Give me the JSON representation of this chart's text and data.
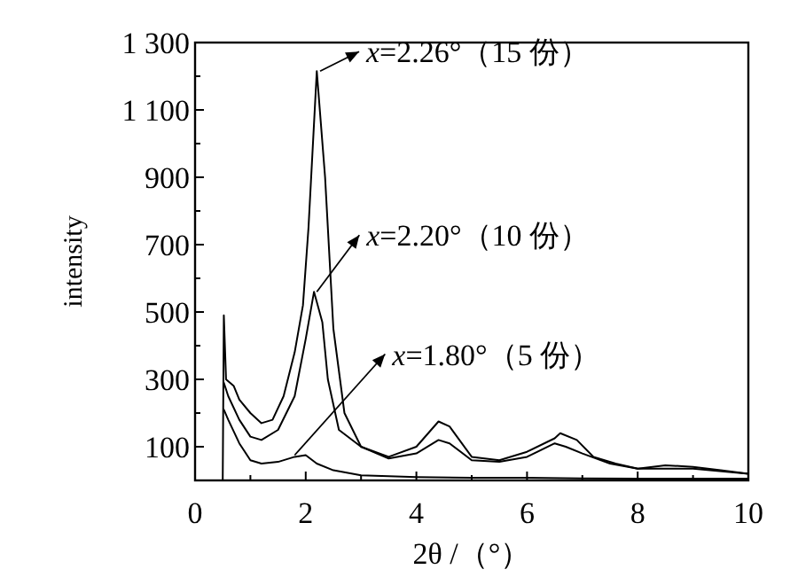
{
  "chart_data": {
    "type": "line",
    "xlabel": "2θ /（°）",
    "ylabel": "intensity",
    "xlim": [
      0,
      10
    ],
    "ylim": [
      0,
      1300
    ],
    "xticks": [
      0,
      {
        "value": 1,
        "label": null
      },
      2,
      {
        "value": 3,
        "label": null
      },
      4,
      {
        "value": 5,
        "label": null
      },
      6,
      {
        "value": 7,
        "label": null
      },
      8,
      {
        "value": 9,
        "label": null
      },
      10
    ],
    "yticks": [
      {
        "value": 100,
        "label": "100"
      },
      {
        "value": 200,
        "label": null
      },
      {
        "value": 300,
        "label": "300"
      },
      {
        "value": 400,
        "label": null
      },
      {
        "value": 500,
        "label": "500"
      },
      {
        "value": 600,
        "label": null
      },
      {
        "value": 700,
        "label": "700"
      },
      {
        "value": 800,
        "label": null
      },
      {
        "value": 900,
        "label": "900"
      },
      {
        "value": 1000,
        "label": null
      },
      {
        "value": 1100,
        "label": "1 100"
      },
      {
        "value": 1200,
        "label": null
      },
      {
        "value": 1300,
        "label": "1 300"
      }
    ],
    "grid": false,
    "marker": "none",
    "line_style": "solid",
    "series": [
      {
        "color": "#000000",
        "x": [
          0.5,
          0.52,
          0.56,
          0.7,
          0.8,
          1.0,
          1.2,
          1.4,
          1.6,
          1.8,
          1.95,
          2.05,
          2.2,
          2.35,
          2.5,
          2.7,
          3.0,
          3.5,
          4.0,
          4.4,
          4.6,
          5.0,
          5.5,
          6.0,
          6.5,
          6.6,
          6.9,
          7.2,
          7.6,
          8.0,
          8.5,
          9.0,
          9.5,
          10.0
        ],
        "values": [
          0,
          490,
          300,
          280,
          240,
          200,
          170,
          180,
          250,
          380,
          520,
          750,
          1215,
          900,
          450,
          200,
          100,
          70,
          100,
          175,
          160,
          70,
          60,
          85,
          125,
          140,
          120,
          70,
          50,
          35,
          45,
          40,
          30,
          20
        ]
      },
      {
        "color": "#000000",
        "x": [
          0.52,
          0.6,
          0.8,
          1.0,
          1.2,
          1.5,
          1.8,
          2.0,
          2.15,
          2.3,
          2.4,
          2.6,
          3.0,
          3.5,
          4.0,
          4.4,
          4.6,
          5.0,
          5.5,
          6.0,
          6.5,
          6.7,
          7.0,
          7.5,
          8.0,
          9.0,
          10.0
        ],
        "values": [
          290,
          250,
          180,
          130,
          120,
          150,
          250,
          420,
          560,
          470,
          300,
          150,
          100,
          65,
          80,
          120,
          110,
          60,
          55,
          70,
          110,
          100,
          80,
          50,
          35,
          35,
          20
        ]
      },
      {
        "color": "#000000",
        "x": [
          0.52,
          0.6,
          0.8,
          1.0,
          1.2,
          1.5,
          1.8,
          2.0,
          2.2,
          2.5,
          3.0,
          4.0,
          5.0,
          6.0,
          7.0,
          8.0,
          10.0
        ],
        "values": [
          210,
          180,
          110,
          60,
          50,
          55,
          70,
          75,
          50,
          30,
          15,
          10,
          8,
          8,
          6,
          5,
          5
        ]
      }
    ],
    "annotations": [
      {
        "text": "*x*=2.26°（15 份）",
        "x": 2.26,
        "y": 1215
      },
      {
        "text": "*x*=2.20°（10 份）",
        "x": 2.2,
        "y": 560
      },
      {
        "text": "*x*=1.80°（5 份）",
        "x": 1.8,
        "y": 75
      }
    ]
  }
}
